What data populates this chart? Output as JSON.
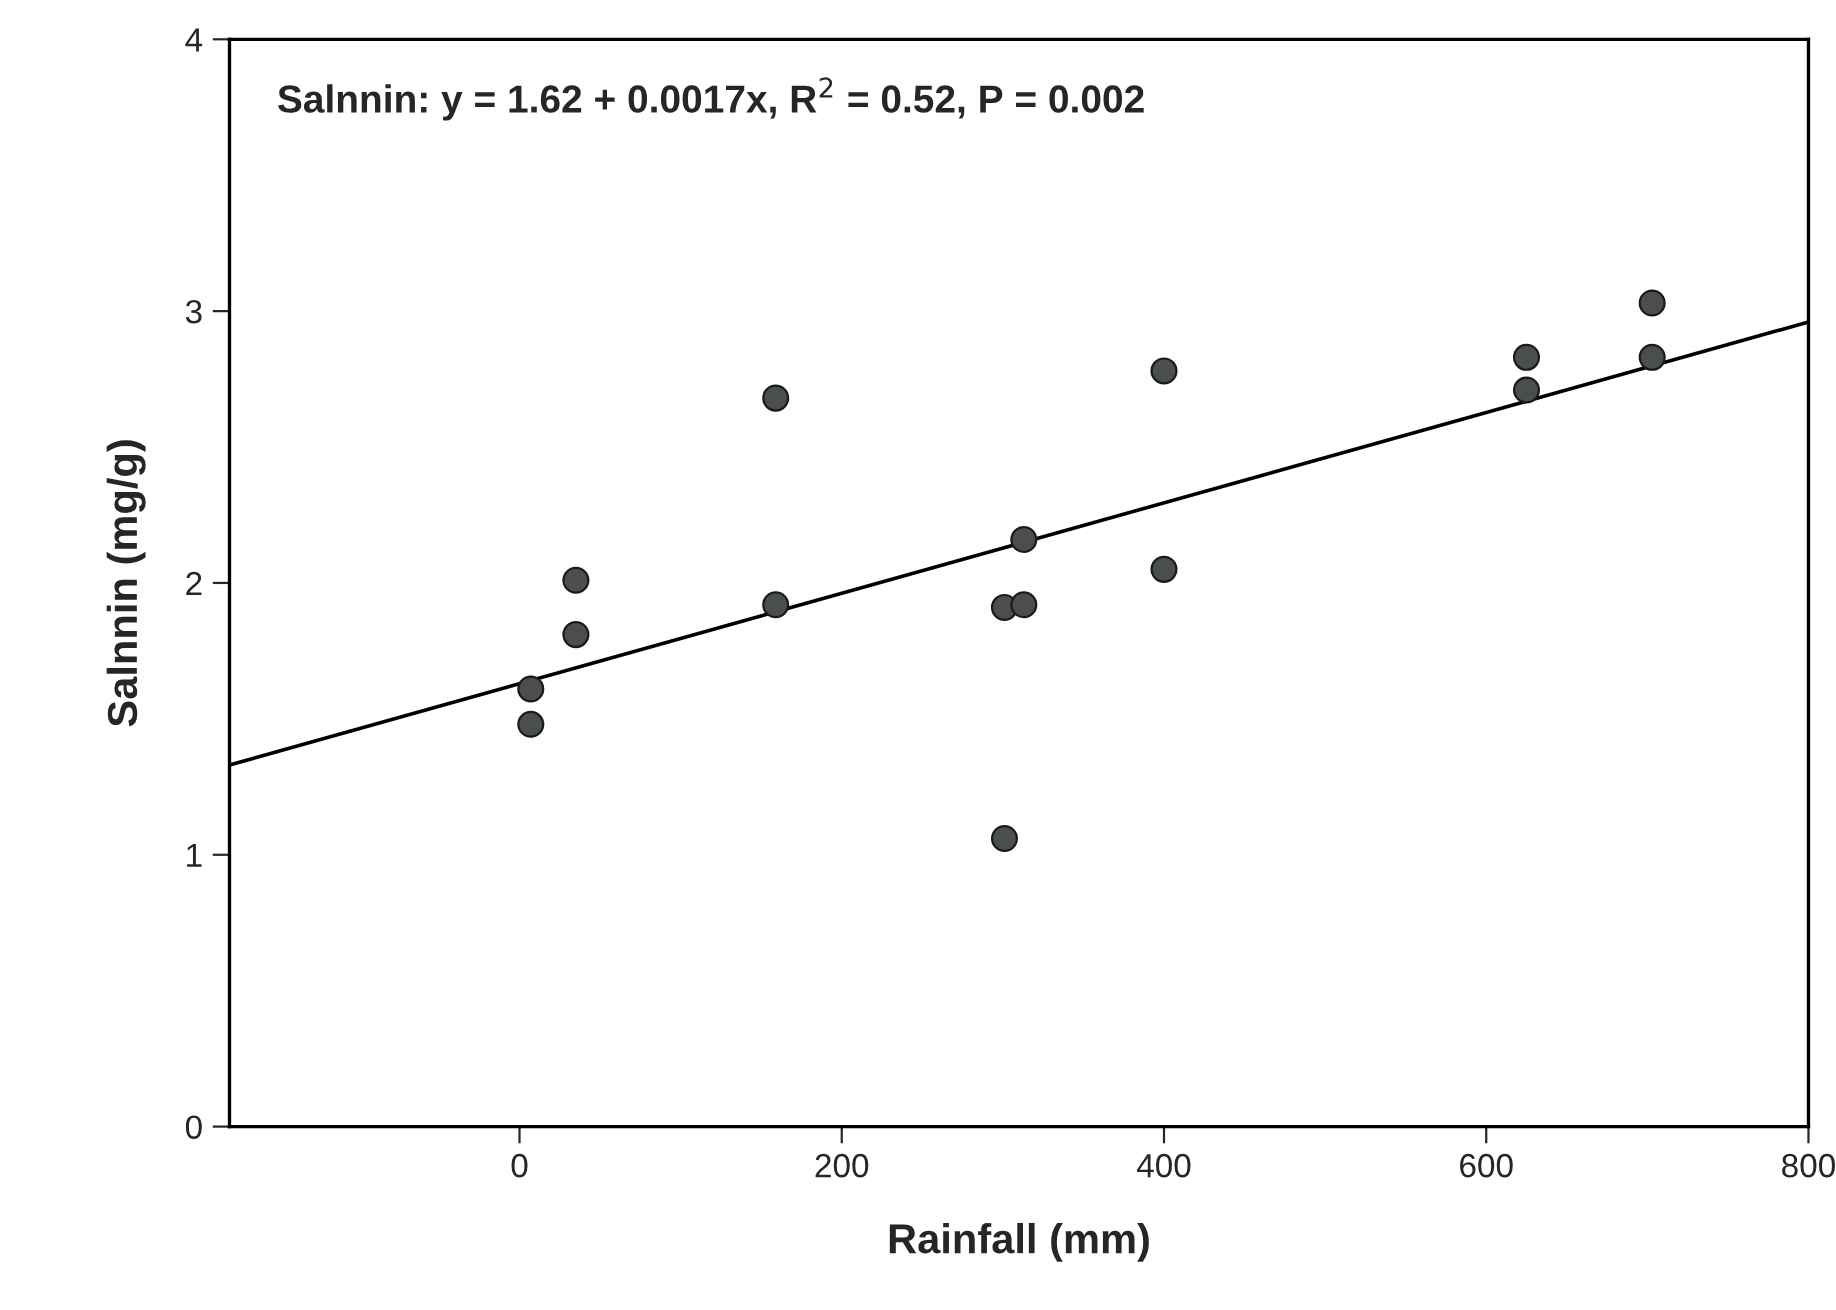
{
  "chart_data": {
    "type": "scatter",
    "xlabel": "Rainfall (mm)",
    "ylabel": "Salnnin (mg/g)",
    "annotations": [
      "Salnnin: y = 1.62 + 0.0017x, R$^{2}$ = 0.52, P = 0.002"
    ],
    "xlim": [
      -180,
      800
    ],
    "xticks": [
      0,
      200,
      400,
      600,
      800
    ],
    "ylim": [
      0,
      4
    ],
    "yticks": [
      0,
      1,
      2,
      3,
      4
    ],
    "grid": false,
    "legend": false,
    "series": [
      {
        "marker": "circle",
        "color": "#4a4f4c",
        "x": [
          7,
          7,
          35,
          35,
          159,
          159,
          301,
          301,
          313,
          313,
          400,
          400,
          625,
          625,
          703,
          703
        ],
        "values": [
          1.61,
          1.48,
          2.01,
          1.81,
          2.68,
          1.92,
          1.06,
          1.91,
          1.92,
          2.16,
          2.78,
          2.05,
          2.83,
          2.71,
          3.03,
          2.83
        ]
      },
      {
        "type": "line",
        "color": "#000000",
        "line_style": "solid",
        "x": [
          -180,
          800
        ],
        "values": [
          1.33,
          2.96
        ]
      }
    ]
  }
}
